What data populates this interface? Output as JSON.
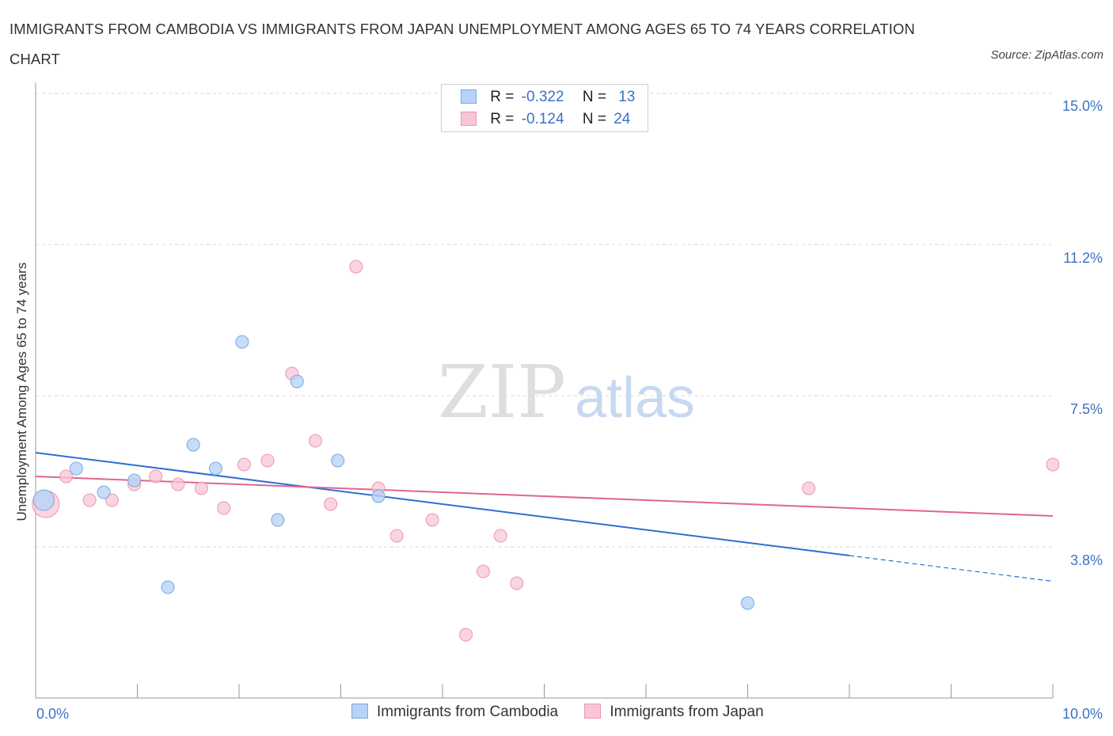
{
  "title": "IMMIGRANTS FROM CAMBODIA VS IMMIGRANTS FROM JAPAN UNEMPLOYMENT AMONG AGES 65 TO 74 YEARS CORRELATION CHART",
  "source": "Source: ZipAtlas.com",
  "watermark": {
    "zip": "ZIP",
    "atlas": "atlas"
  },
  "colors": {
    "cambodia_fill": "#b8d3f5",
    "cambodia_stroke": "#7aa8e0",
    "cambodia_line": "#2f6fd1",
    "japan_fill": "#f8c5d5",
    "japan_stroke": "#eb97b2",
    "japan_line": "#e06592",
    "axis_label": "#3a72c4",
    "grid": "#d9d9d9"
  },
  "legend": {
    "rows": [
      {
        "r_label": "R =",
        "r_value": "-0.322",
        "n_label": "N =",
        "n_value": "13"
      },
      {
        "r_label": "R =",
        "r_value": "-0.124",
        "n_label": "N =",
        "n_value": "24"
      }
    ]
  },
  "chart_data": {
    "type": "scatter",
    "title": "IMMIGRANTS FROM CAMBODIA VS IMMIGRANTS FROM JAPAN UNEMPLOYMENT AMONG AGES 65 TO 74 YEARS CORRELATION CHART",
    "xlabel": "",
    "ylabel": "Unemployment Among Ages 65 to 74 years",
    "xlim": [
      0,
      10
    ],
    "ylim": [
      0,
      15
    ],
    "x_tick_labels": [
      "0.0%",
      "10.0%"
    ],
    "y_ticks": [
      3.8,
      7.5,
      11.2,
      15.0
    ],
    "y_tick_labels": [
      "3.8%",
      "7.5%",
      "11.2%",
      "15.0%"
    ],
    "grid": true,
    "legend_position": "bottom",
    "series": [
      {
        "name": "Immigrants from Cambodia",
        "r": -0.322,
        "n": 13,
        "points": [
          {
            "x": 0.08,
            "y": 5.0,
            "size": "large"
          },
          {
            "x": 0.4,
            "y": 5.8
          },
          {
            "x": 0.67,
            "y": 5.2
          },
          {
            "x": 0.97,
            "y": 5.5
          },
          {
            "x": 1.3,
            "y": 2.8
          },
          {
            "x": 1.55,
            "y": 6.4
          },
          {
            "x": 1.77,
            "y": 5.8
          },
          {
            "x": 2.03,
            "y": 9.0
          },
          {
            "x": 2.38,
            "y": 4.5
          },
          {
            "x": 2.57,
            "y": 8.0
          },
          {
            "x": 2.97,
            "y": 6.0
          },
          {
            "x": 3.37,
            "y": 5.1
          },
          {
            "x": 7.0,
            "y": 2.4
          }
        ],
        "trend": {
          "x0": 0.0,
          "y0": 6.2,
          "x1": 8.0,
          "y1": 3.6,
          "dashed_to_x": 10.0,
          "dashed_to_y": 2.95
        }
      },
      {
        "name": "Immigrants from Japan",
        "r": -0.124,
        "n": 24,
        "points": [
          {
            "x": 0.1,
            "y": 4.9,
            "size": "large"
          },
          {
            "x": 0.3,
            "y": 5.6
          },
          {
            "x": 0.53,
            "y": 5.0
          },
          {
            "x": 0.75,
            "y": 5.0
          },
          {
            "x": 0.97,
            "y": 5.4
          },
          {
            "x": 1.18,
            "y": 5.6
          },
          {
            "x": 1.4,
            "y": 5.4
          },
          {
            "x": 1.63,
            "y": 5.3
          },
          {
            "x": 1.85,
            "y": 4.8
          },
          {
            "x": 2.05,
            "y": 5.9
          },
          {
            "x": 2.28,
            "y": 6.0
          },
          {
            "x": 2.52,
            "y": 8.2
          },
          {
            "x": 2.75,
            "y": 6.5
          },
          {
            "x": 2.9,
            "y": 4.9
          },
          {
            "x": 3.15,
            "y": 10.9
          },
          {
            "x": 3.37,
            "y": 5.3
          },
          {
            "x": 3.55,
            "y": 4.1
          },
          {
            "x": 3.9,
            "y": 4.5
          },
          {
            "x": 4.23,
            "y": 1.6
          },
          {
            "x": 4.4,
            "y": 3.2
          },
          {
            "x": 4.57,
            "y": 4.1
          },
          {
            "x": 4.73,
            "y": 2.9
          },
          {
            "x": 7.6,
            "y": 5.3
          },
          {
            "x": 10.0,
            "y": 5.9
          }
        ],
        "trend": {
          "x0": 0.0,
          "y0": 5.6,
          "x1": 10.0,
          "y1": 4.6
        }
      }
    ]
  }
}
